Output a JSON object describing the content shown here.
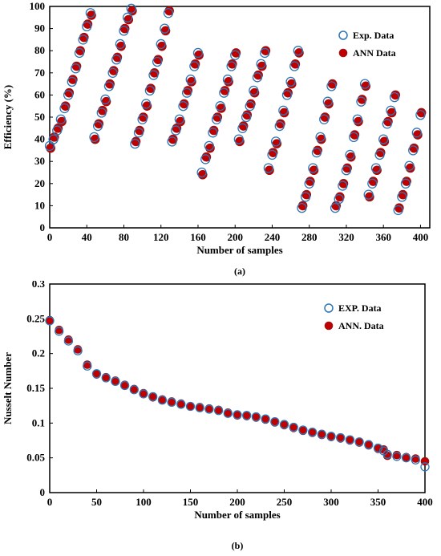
{
  "chart_data": [
    {
      "type": "scatter",
      "panel": "(a)",
      "xlabel": "Number of samples",
      "ylabel": "Efficiency (%)",
      "xlim": [
        0,
        410
      ],
      "ylim": [
        0,
        100
      ],
      "xticks": [
        0,
        40,
        80,
        120,
        160,
        200,
        240,
        280,
        320,
        360,
        400
      ],
      "yticks": [
        0,
        10,
        20,
        30,
        40,
        50,
        60,
        70,
        80,
        90,
        100
      ],
      "legend": {
        "position": "top-right",
        "entries": [
          "Exp. Data",
          "ANN Data"
        ]
      },
      "colors": {
        "exp": "#2e75b6",
        "ann": "#c00000"
      },
      "grid": false,
      "series": [
        {
          "name": "Exp. Data",
          "marker": "open-circle",
          "x": [
            0,
            4,
            8,
            12,
            16,
            20,
            24,
            28,
            32,
            36,
            40,
            44,
            48,
            52,
            56,
            60,
            64,
            68,
            72,
            76,
            80,
            84,
            88,
            92,
            96,
            100,
            104,
            108,
            112,
            116,
            120,
            124,
            128,
            132,
            136,
            140,
            144,
            148,
            152,
            156,
            160,
            164,
            168,
            172,
            176,
            180,
            184,
            188,
            192,
            196,
            200,
            204,
            208,
            212,
            216,
            220,
            224,
            228,
            232,
            236,
            240,
            244,
            248,
            252,
            256,
            260,
            264,
            268,
            272,
            276,
            280,
            284,
            288,
            292,
            296,
            300,
            304,
            308,
            312,
            316,
            320,
            324,
            328,
            332,
            336,
            340,
            344,
            348,
            352,
            356,
            360,
            364,
            368,
            372,
            376,
            380,
            384,
            388,
            392,
            396,
            400
          ],
          "y": [
            37,
            40,
            44,
            49,
            54,
            60,
            66,
            72,
            79,
            85,
            91,
            97,
            41,
            46,
            52,
            58,
            64,
            70,
            76,
            83,
            89,
            95,
            99,
            38,
            43,
            49,
            56,
            62,
            69,
            75,
            83,
            90,
            97,
            39,
            44,
            49,
            55,
            61,
            67,
            73,
            79,
            25,
            31,
            37,
            43,
            49,
            55,
            61,
            67,
            73,
            78,
            40,
            45,
            50,
            55,
            62,
            68,
            74,
            79,
            27,
            33,
            39,
            46,
            53,
            60,
            66,
            73,
            80,
            9,
            14,
            20,
            27,
            34,
            41,
            49,
            57,
            64,
            9,
            13,
            19,
            26,
            33,
            41,
            49,
            57,
            65,
            15,
            20,
            27,
            33,
            40,
            47,
            53,
            59,
            8,
            14,
            20,
            28,
            35,
            43,
            51
          ]
        },
        {
          "name": "ANN Data",
          "marker": "filled-circle",
          "x": [
            1,
            5,
            9,
            13,
            17,
            21,
            25,
            29,
            33,
            37,
            41,
            45,
            49,
            53,
            57,
            61,
            65,
            69,
            73,
            77,
            81,
            85,
            89,
            93,
            97,
            101,
            105,
            109,
            113,
            117,
            121,
            125,
            129,
            133,
            137,
            141,
            145,
            149,
            153,
            157,
            161,
            165,
            169,
            173,
            177,
            181,
            185,
            189,
            193,
            197,
            201,
            205,
            209,
            213,
            217,
            221,
            225,
            229,
            233,
            237,
            241,
            245,
            249,
            253,
            257,
            261,
            265,
            269,
            273,
            277,
            281,
            285,
            289,
            293,
            297,
            301,
            305,
            309,
            313,
            317,
            321,
            325,
            329,
            333,
            337,
            341,
            345,
            349,
            353,
            357,
            361,
            365,
            369,
            373,
            377,
            381,
            385,
            389,
            393,
            397,
            401
          ],
          "y": [
            36,
            41,
            45,
            48,
            55,
            61,
            67,
            73,
            80,
            86,
            92,
            96,
            40,
            47,
            53,
            57,
            65,
            71,
            77,
            82,
            90,
            94,
            98,
            39,
            44,
            50,
            55,
            63,
            70,
            76,
            82,
            89,
            98,
            40,
            45,
            48,
            56,
            62,
            66,
            74,
            78,
            24,
            32,
            36,
            44,
            50,
            54,
            62,
            66,
            74,
            79,
            39,
            46,
            51,
            56,
            61,
            69,
            73,
            80,
            26,
            34,
            38,
            47,
            52,
            61,
            65,
            74,
            79,
            10,
            15,
            21,
            26,
            35,
            40,
            50,
            56,
            65,
            10,
            14,
            20,
            27,
            32,
            42,
            48,
            58,
            64,
            14,
            21,
            26,
            34,
            39,
            48,
            52,
            60,
            9,
            15,
            21,
            27,
            36,
            42,
            52
          ]
        }
      ]
    },
    {
      "type": "scatter",
      "panel": "(b)",
      "xlabel": "Number of samples",
      "ylabel": "Nusselt Number",
      "xlim": [
        0,
        400
      ],
      "ylim": [
        0,
        0.3
      ],
      "xticks": [
        0,
        50,
        100,
        150,
        200,
        250,
        300,
        350,
        400
      ],
      "yticks": [
        0,
        0.05,
        0.1,
        0.15,
        0.2,
        0.25,
        0.3
      ],
      "legend": {
        "position": "top-right",
        "entries": [
          "EXP. Data",
          "ANN. Data"
        ]
      },
      "colors": {
        "exp": "#2e75b6",
        "ann": "#c00000"
      },
      "grid": false,
      "series": [
        {
          "name": "EXP. Data",
          "marker": "open-circle",
          "x": [
            0,
            10,
            20,
            30,
            40,
            50,
            60,
            70,
            80,
            90,
            100,
            110,
            120,
            130,
            140,
            150,
            160,
            170,
            180,
            190,
            200,
            210,
            220,
            230,
            240,
            250,
            260,
            270,
            280,
            290,
            300,
            310,
            320,
            330,
            340,
            350,
            356,
            360,
            370,
            380,
            390,
            400
          ],
          "y": [
            0.247,
            0.232,
            0.218,
            0.204,
            0.182,
            0.171,
            0.165,
            0.16,
            0.154,
            0.148,
            0.142,
            0.138,
            0.133,
            0.13,
            0.127,
            0.124,
            0.122,
            0.12,
            0.118,
            0.114,
            0.112,
            0.111,
            0.109,
            0.106,
            0.102,
            0.098,
            0.094,
            0.09,
            0.087,
            0.084,
            0.081,
            0.079,
            0.076,
            0.073,
            0.069,
            0.064,
            0.06,
            0.055,
            0.052,
            0.05,
            0.047,
            0.037
          ]
        },
        {
          "name": "ANN. Data",
          "marker": "filled-circle",
          "x": [
            0,
            10,
            20,
            30,
            40,
            50,
            60,
            70,
            80,
            90,
            100,
            110,
            120,
            130,
            140,
            150,
            160,
            170,
            180,
            190,
            200,
            210,
            220,
            230,
            240,
            250,
            260,
            270,
            280,
            290,
            300,
            310,
            320,
            330,
            340,
            350,
            356,
            360,
            370,
            380,
            390,
            400
          ],
          "y": [
            0.248,
            0.234,
            0.22,
            0.206,
            0.184,
            0.17,
            0.166,
            0.161,
            0.155,
            0.149,
            0.143,
            0.137,
            0.134,
            0.131,
            0.128,
            0.124,
            0.123,
            0.121,
            0.119,
            0.115,
            0.111,
            0.11,
            0.108,
            0.105,
            0.101,
            0.097,
            0.093,
            0.089,
            0.086,
            0.083,
            0.08,
            0.078,
            0.075,
            0.072,
            0.068,
            0.063,
            0.062,
            0.053,
            0.054,
            0.051,
            0.049,
            0.045
          ]
        }
      ]
    }
  ]
}
